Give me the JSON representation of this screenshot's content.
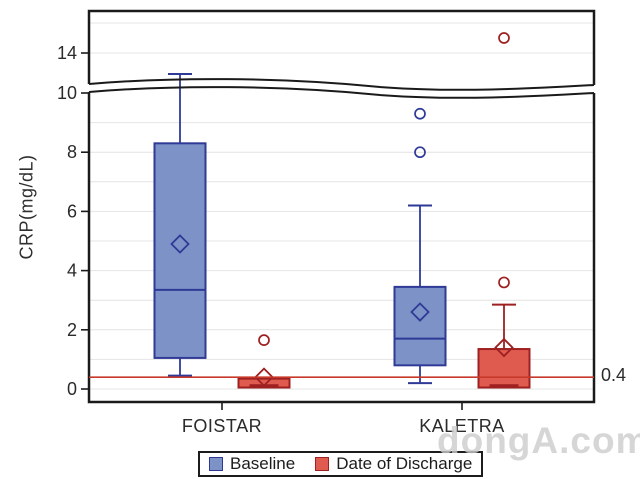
{
  "watermark": "dongA.com",
  "chart_data": {
    "type": "box",
    "title": "",
    "ylabel": "CRP(mg/dL)",
    "xlabel": "",
    "categories": [
      "FOISTAR",
      "KALETRA"
    ],
    "y_axis": {
      "axis_break": true,
      "lower_ticks": [
        "0",
        "2",
        "4",
        "6",
        "8",
        "10"
      ],
      "lower_tick_values": [
        0,
        2,
        4,
        6,
        8,
        10
      ],
      "upper_ticks": [
        "14"
      ],
      "upper_tick_values": [
        14
      ],
      "lower_range": [
        0,
        10.4
      ],
      "upper_range": [
        13,
        15.4
      ],
      "minor_grid_step": 1,
      "grid": true
    },
    "reference_line": {
      "value": 0.4,
      "label": "0.4",
      "color": "#c8392b"
    },
    "legend_position": "bottom-center",
    "legend": [
      {
        "label": "Baseline",
        "fill": "#7d92c7",
        "stroke": "#2e3a96"
      },
      {
        "label": "Date of Discharge",
        "fill": "#df5b50",
        "stroke": "#9e2020"
      }
    ],
    "series": [
      {
        "name": "Baseline",
        "fill": "#7d92c7",
        "stroke": "#2e3a96",
        "boxes": [
          {
            "category": "FOISTAR",
            "whisker_low": 0.45,
            "q1": 1.05,
            "median": 3.35,
            "q3": 8.3,
            "whisker_high": 13.3,
            "mean": 4.9,
            "outliers": []
          },
          {
            "category": "KALETRA",
            "whisker_low": 0.2,
            "q1": 0.8,
            "median": 1.7,
            "q3": 3.45,
            "whisker_high": 6.2,
            "mean": 2.6,
            "outliers": [
              8.0,
              9.3
            ]
          }
        ]
      },
      {
        "name": "Date of Discharge",
        "fill": "#df5b50",
        "stroke": "#9e2020",
        "boxes": [
          {
            "category": "FOISTAR",
            "whisker_low": 0.05,
            "q1": 0.05,
            "median": 0.1,
            "q3": 0.35,
            "whisker_high": 0.35,
            "mean": 0.4,
            "outliers": [
              1.65
            ]
          },
          {
            "category": "KALETRA",
            "whisker_low": 0.05,
            "q1": 0.05,
            "median": 0.1,
            "q3": 1.35,
            "whisker_high": 2.85,
            "mean": 1.4,
            "outliers": [
              3.6,
              14.5
            ]
          }
        ]
      }
    ]
  }
}
